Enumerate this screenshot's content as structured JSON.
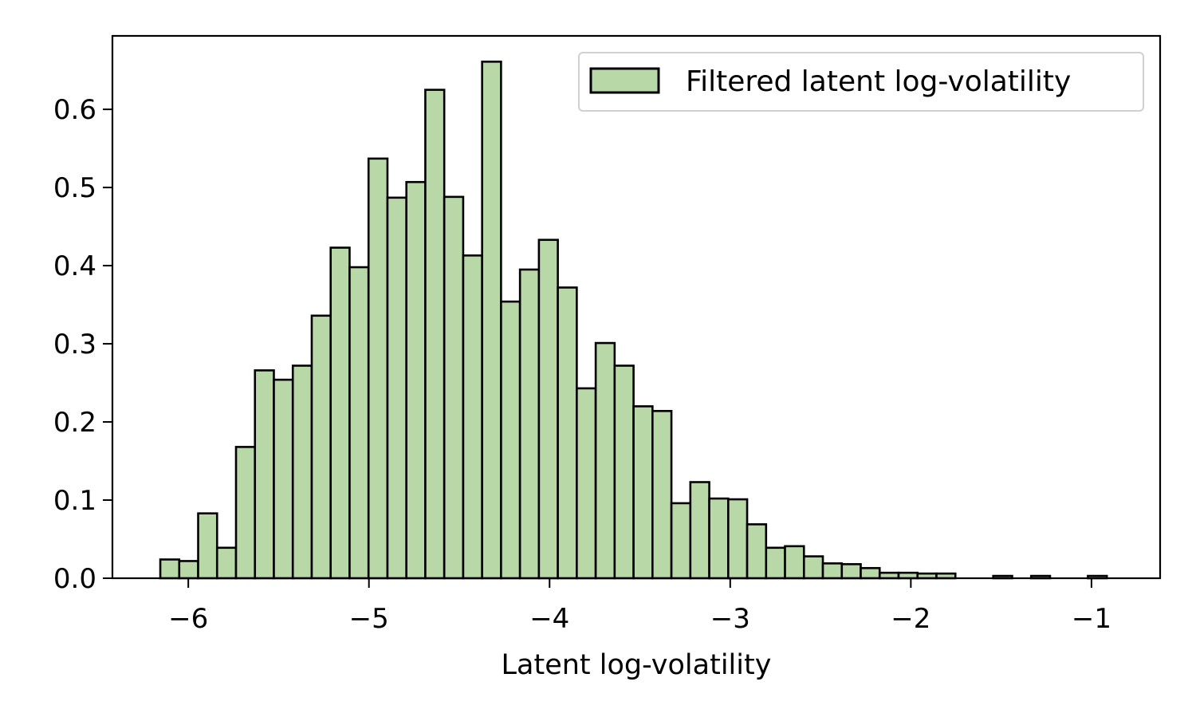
{
  "chart_data": {
    "type": "bar",
    "subtype": "histogram",
    "title": "",
    "xlabel": "Latent log-volatility",
    "ylabel": "",
    "xlim": [
      -6.42,
      -0.62
    ],
    "ylim": [
      0.0,
      0.694
    ],
    "xticks": [
      -6,
      -5,
      -4,
      -3,
      -2,
      -1
    ],
    "xtick_labels": [
      "−6",
      "−5",
      "−4",
      "−3",
      "−2",
      "−1"
    ],
    "yticks": [
      0.0,
      0.1,
      0.2,
      0.3,
      0.4,
      0.5,
      0.6
    ],
    "ytick_labels": [
      "0.0",
      "0.1",
      "0.2",
      "0.3",
      "0.4",
      "0.5",
      "0.6"
    ],
    "grid": false,
    "legend": {
      "position": "upper right",
      "entries": [
        "Filtered latent log-volatility"
      ]
    },
    "bin_start": -6.155,
    "bin_width": 0.1048,
    "bin_count": 50,
    "series": [
      {
        "name": "Filtered latent log-volatility",
        "color": "#b8d8a8",
        "edgecolor": "#000000",
        "values": [
          0.024,
          0.022,
          0.083,
          0.039,
          0.168,
          0.266,
          0.254,
          0.272,
          0.336,
          0.423,
          0.398,
          0.537,
          0.487,
          0.507,
          0.625,
          0.488,
          0.413,
          0.661,
          0.354,
          0.395,
          0.433,
          0.372,
          0.243,
          0.301,
          0.272,
          0.22,
          0.214,
          0.096,
          0.123,
          0.102,
          0.101,
          0.069,
          0.039,
          0.041,
          0.028,
          0.019,
          0.018,
          0.013,
          0.007,
          0.007,
          0.006,
          0.006,
          0.0,
          0.0,
          0.003,
          0.0,
          0.003,
          0.0,
          0.0,
          0.003
        ]
      }
    ]
  },
  "legend": {
    "label": "Filtered latent log-volatility",
    "swatch_color": "#b8d8a8"
  },
  "axes": {
    "xlabel": "Latent log-volatility"
  },
  "colors": {
    "bar_fill": "#b8d8a8",
    "bar_edge": "#000000",
    "legend_border": "#cccccc"
  }
}
